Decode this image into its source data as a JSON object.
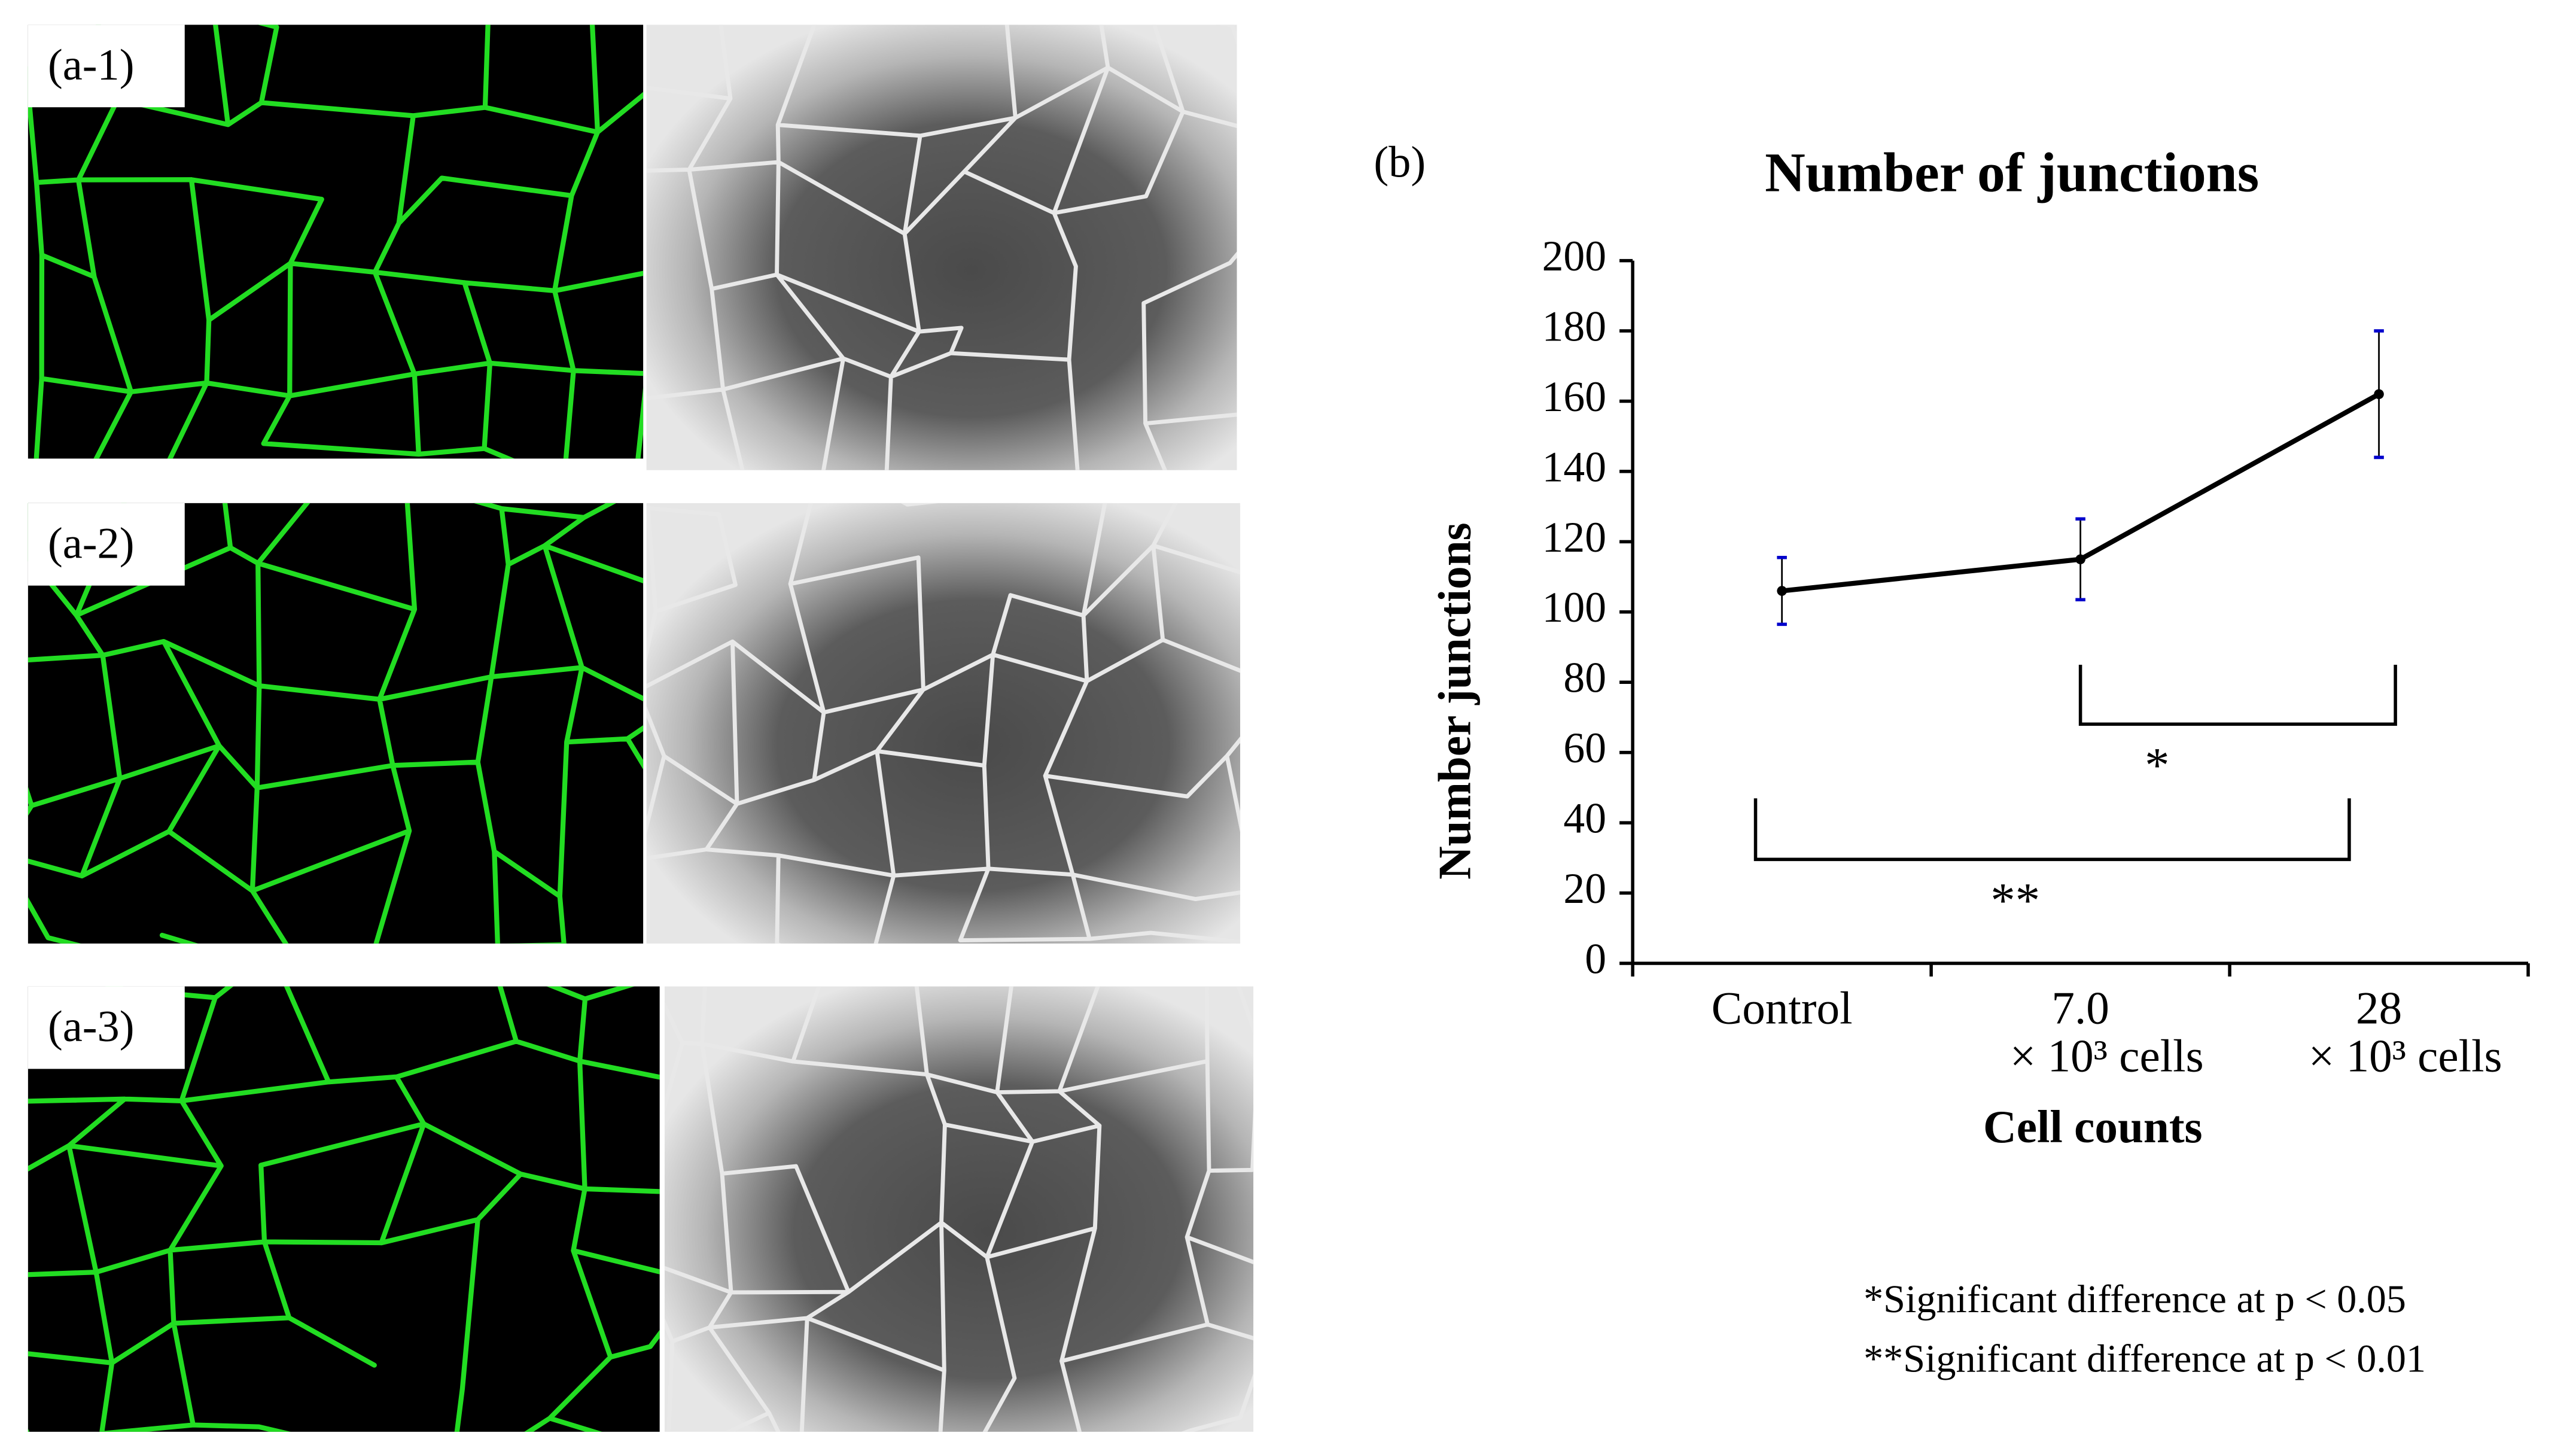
{
  "panels": {
    "labels": [
      "(a-1)",
      "(a-2)",
      "(a-3)"
    ],
    "chart_label": "(b)"
  },
  "chart_data": {
    "type": "line",
    "title": "Number of junctions",
    "y_label": "Number junctions",
    "x_label": "Cell counts",
    "categories": [
      "Control",
      "7.0",
      "28"
    ],
    "category_unit": "× 10³ cells",
    "series": [
      {
        "name": "Number junctions",
        "color": "#000000",
        "error_color": "#0000cc",
        "values": [
          106,
          115,
          162
        ],
        "errors": [
          9.5,
          11.5,
          18
        ]
      }
    ],
    "ylim": [
      0,
      200
    ],
    "yticks": [
      0,
      20,
      40,
      60,
      80,
      100,
      120,
      140,
      160,
      180,
      200
    ],
    "grid": false,
    "significance": [
      {
        "from": 1,
        "to": 2,
        "label": "*"
      },
      {
        "from": 0,
        "to": 2,
        "label": "**"
      }
    ],
    "notes": [
      "*Significant  difference at p < 0.05",
      "**Significant  difference at p < 0.01"
    ]
  }
}
